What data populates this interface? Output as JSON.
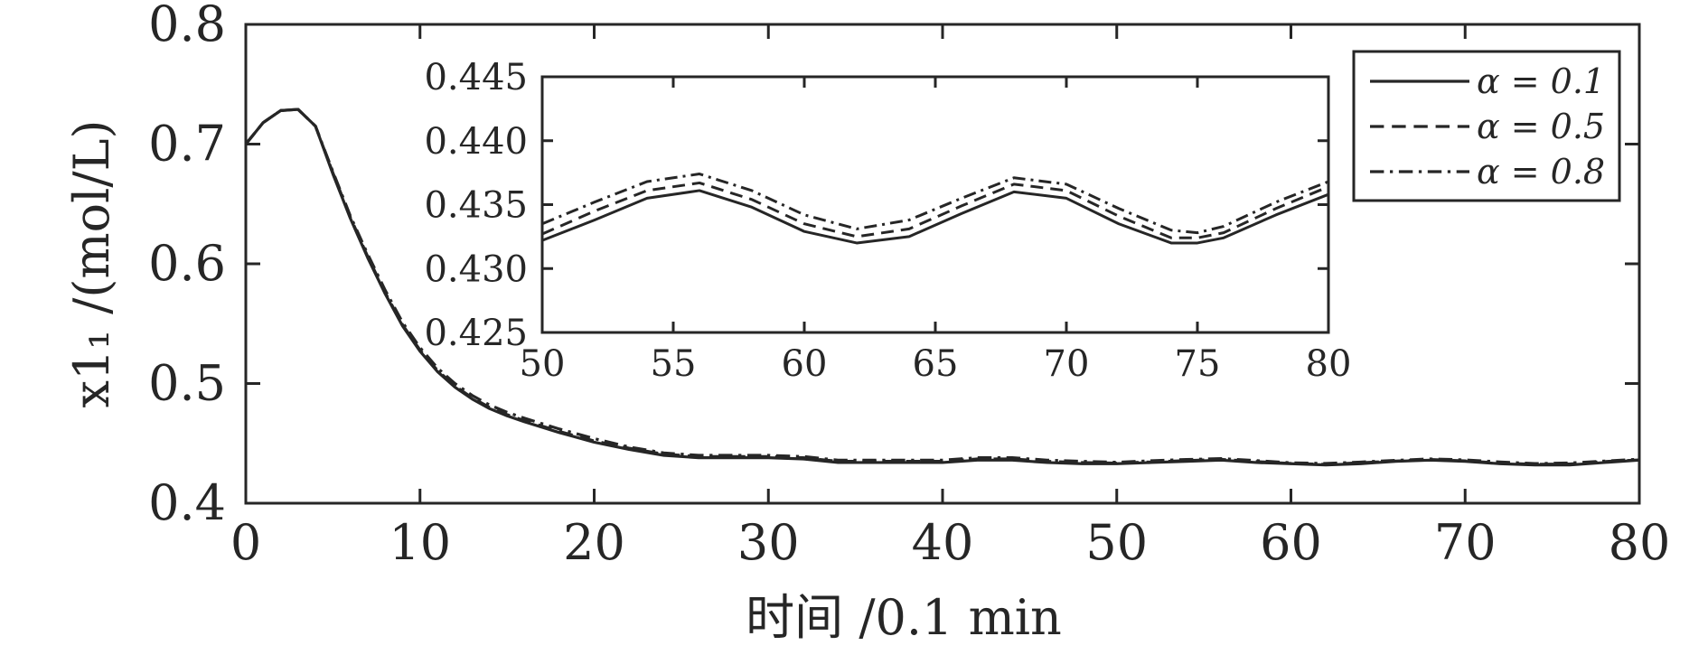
{
  "chart_data": [
    {
      "type": "line",
      "title": "",
      "xlabel": "时间 /0.1 min",
      "ylabel": "x1₁ /(mol/L)",
      "xlim": [
        0,
        80
      ],
      "ylim": [
        0.4,
        0.8
      ],
      "xticks": [
        0,
        10,
        20,
        30,
        40,
        50,
        60,
        70,
        80
      ],
      "yticks": [
        0.4,
        0.5,
        0.6,
        0.7,
        0.8
      ],
      "xtick_labels": [
        "0",
        "10",
        "20",
        "30",
        "40",
        "50",
        "60",
        "70",
        "80"
      ],
      "ytick_labels": [
        "0.4",
        "0.5",
        "0.6",
        "0.7",
        "0.8"
      ],
      "grid": false,
      "legend_position": "top-right",
      "series": [
        {
          "name": "α = 0.1",
          "line_style": "solid",
          "color": "#262626",
          "x": [
            0,
            1,
            2,
            3,
            4,
            5,
            6,
            7,
            8,
            9,
            10,
            11,
            12,
            13,
            14,
            15,
            16,
            18,
            20,
            22,
            24,
            26,
            28,
            30,
            32,
            34,
            36,
            38,
            40,
            42,
            44,
            46,
            48,
            50,
            52,
            54,
            56,
            58,
            60,
            62,
            64,
            66,
            68,
            70,
            72,
            74,
            76,
            78,
            80
          ],
          "values": [
            0.7,
            0.718,
            0.728,
            0.729,
            0.715,
            0.675,
            0.638,
            0.605,
            0.575,
            0.548,
            0.527,
            0.51,
            0.497,
            0.487,
            0.479,
            0.473,
            0.468,
            0.459,
            0.451,
            0.445,
            0.44,
            0.438,
            0.438,
            0.438,
            0.437,
            0.434,
            0.434,
            0.434,
            0.434,
            0.436,
            0.436,
            0.434,
            0.433,
            0.433,
            0.434,
            0.435,
            0.436,
            0.434,
            0.433,
            0.432,
            0.433,
            0.435,
            0.436,
            0.435,
            0.433,
            0.432,
            0.432,
            0.434,
            0.436
          ]
        },
        {
          "name": "α = 0.5",
          "line_style": "dashed",
          "color": "#262626",
          "x": [
            0,
            1,
            2,
            3,
            4,
            5,
            6,
            7,
            8,
            9,
            10,
            11,
            12,
            13,
            14,
            15,
            16,
            18,
            20,
            22,
            24,
            26,
            28,
            30,
            32,
            34,
            36,
            38,
            40,
            42,
            44,
            46,
            48,
            50,
            52,
            54,
            56,
            58,
            60,
            62,
            64,
            66,
            68,
            70,
            72,
            74,
            76,
            78,
            80
          ],
          "values": [
            0.7,
            0.718,
            0.728,
            0.729,
            0.715,
            0.676,
            0.639,
            0.606,
            0.576,
            0.549,
            0.528,
            0.511,
            0.498,
            0.488,
            0.48,
            0.474,
            0.469,
            0.46,
            0.452,
            0.446,
            0.441,
            0.439,
            0.439,
            0.439,
            0.438,
            0.435,
            0.435,
            0.435,
            0.435,
            0.437,
            0.437,
            0.435,
            0.434,
            0.4335,
            0.4345,
            0.4356,
            0.4366,
            0.4348,
            0.4332,
            0.4325,
            0.4338,
            0.4352,
            0.4365,
            0.4354,
            0.4336,
            0.4325,
            0.4328,
            0.4348,
            0.4362
          ]
        },
        {
          "name": "α = 0.8",
          "line_style": "dash-dot",
          "color": "#262626",
          "x": [
            0,
            1,
            2,
            3,
            4,
            5,
            6,
            7,
            8,
            9,
            10,
            11,
            12,
            13,
            14,
            15,
            16,
            18,
            20,
            22,
            24,
            26,
            28,
            30,
            32,
            34,
            36,
            38,
            40,
            42,
            44,
            46,
            48,
            50,
            52,
            54,
            56,
            58,
            60,
            62,
            64,
            66,
            68,
            70,
            72,
            74,
            76,
            78,
            80
          ],
          "values": [
            0.7,
            0.718,
            0.728,
            0.729,
            0.715,
            0.677,
            0.64,
            0.608,
            0.578,
            0.551,
            0.53,
            0.513,
            0.5,
            0.49,
            0.482,
            0.476,
            0.471,
            0.462,
            0.454,
            0.447,
            0.442,
            0.44,
            0.44,
            0.44,
            0.439,
            0.436,
            0.436,
            0.436,
            0.436,
            0.438,
            0.438,
            0.436,
            0.435,
            0.4342,
            0.4355,
            0.4365,
            0.4373,
            0.4356,
            0.4338,
            0.4332,
            0.4344,
            0.4358,
            0.437,
            0.4362,
            0.4345,
            0.4331,
            0.4336,
            0.4352,
            0.4368
          ]
        }
      ]
    },
    {
      "type": "line",
      "title": "",
      "xlabel": "",
      "ylabel": "",
      "xlim": [
        50,
        80
      ],
      "ylim": [
        0.425,
        0.445
      ],
      "xticks": [
        50,
        55,
        60,
        65,
        70,
        75,
        80
      ],
      "yticks": [
        0.425,
        0.43,
        0.435,
        0.44,
        0.445
      ],
      "xtick_labels": [
        "50",
        "55",
        "60",
        "65",
        "70",
        "75",
        "80"
      ],
      "ytick_labels": [
        "0.425",
        "0.430",
        "0.435",
        "0.440",
        "0.445"
      ],
      "grid": false,
      "series": [
        {
          "name": "α = 0.1",
          "line_style": "solid",
          "color": "#262626",
          "x": [
            50,
            52,
            54,
            56,
            58,
            60,
            62,
            64,
            66,
            68,
            70,
            72,
            74,
            75,
            76,
            78,
            80
          ],
          "values": [
            0.4322,
            0.4338,
            0.4355,
            0.4361,
            0.4348,
            0.4329,
            0.432,
            0.4325,
            0.4343,
            0.436,
            0.4355,
            0.4335,
            0.432,
            0.432,
            0.4324,
            0.4342,
            0.4358
          ]
        },
        {
          "name": "α = 0.5",
          "line_style": "dashed",
          "color": "#262626",
          "x": [
            50,
            52,
            54,
            56,
            58,
            60,
            62,
            64,
            66,
            68,
            70,
            72,
            74,
            75,
            76,
            78,
            80
          ],
          "values": [
            0.4327,
            0.4345,
            0.4361,
            0.4367,
            0.4354,
            0.4335,
            0.4325,
            0.4331,
            0.4349,
            0.4366,
            0.4361,
            0.4341,
            0.4324,
            0.4324,
            0.4328,
            0.4347,
            0.4364
          ]
        },
        {
          "name": "α = 0.8",
          "line_style": "dash-dot",
          "color": "#262626",
          "x": [
            50,
            52,
            54,
            56,
            58,
            60,
            62,
            64,
            66,
            68,
            70,
            72,
            74,
            75,
            76,
            78,
            80
          ],
          "values": [
            0.4335,
            0.4352,
            0.4368,
            0.4374,
            0.4361,
            0.4342,
            0.4331,
            0.4338,
            0.4355,
            0.4371,
            0.4366,
            0.4347,
            0.433,
            0.4328,
            0.4333,
            0.4352,
            0.4368
          ]
        }
      ]
    }
  ]
}
